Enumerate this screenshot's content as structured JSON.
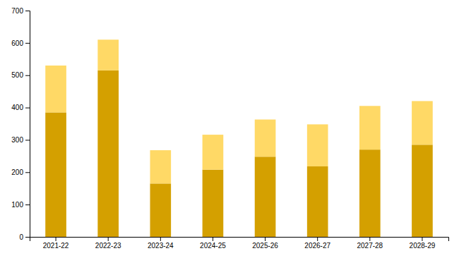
{
  "chart_data": {
    "type": "bar",
    "stacked": true,
    "grid": false,
    "categories": [
      "2021-22",
      "2022-23",
      "2023-24",
      "2024-25",
      "2025-26",
      "2026-27",
      "2027-28",
      "2028-29"
    ],
    "series": [
      {
        "color": "#D4A000",
        "values": [
          385,
          515,
          165,
          208,
          248,
          218,
          270,
          285
        ]
      },
      {
        "color": "#FFD966",
        "values": [
          145,
          95,
          103,
          108,
          115,
          130,
          135,
          135
        ]
      }
    ],
    "ylim": [
      0,
      700
    ],
    "yticks": [
      0,
      100,
      200,
      300,
      400,
      500,
      600,
      700
    ]
  }
}
